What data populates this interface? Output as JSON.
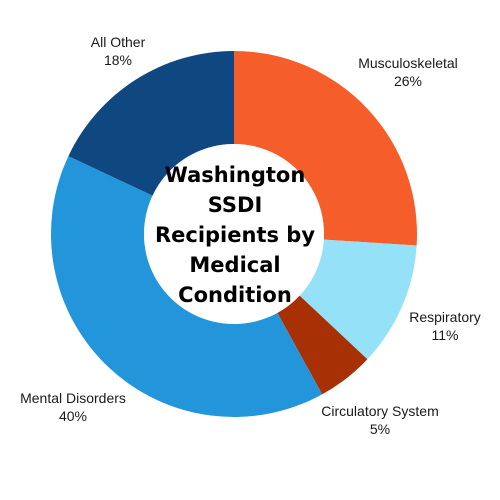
{
  "chart_data": {
    "type": "pie",
    "title": "Washington SSDI Recipients by Medical Condition",
    "donut": true,
    "slices": [
      {
        "label": "Musculoskeletal",
        "value": 26,
        "value_label": "26%",
        "color": "#F55D2A"
      },
      {
        "label": "Respiratory",
        "value": 11,
        "value_label": "11%",
        "color": "#95E1F7"
      },
      {
        "label": "Circulatory System",
        "value": 5,
        "value_label": "5%",
        "color": "#A73104"
      },
      {
        "label": "Mental Disorders",
        "value": 40,
        "value_label": "40%",
        "color": "#2396DB"
      },
      {
        "label": "All Other",
        "value": 18,
        "value_label": "18%",
        "color": "#0F4780"
      }
    ]
  }
}
